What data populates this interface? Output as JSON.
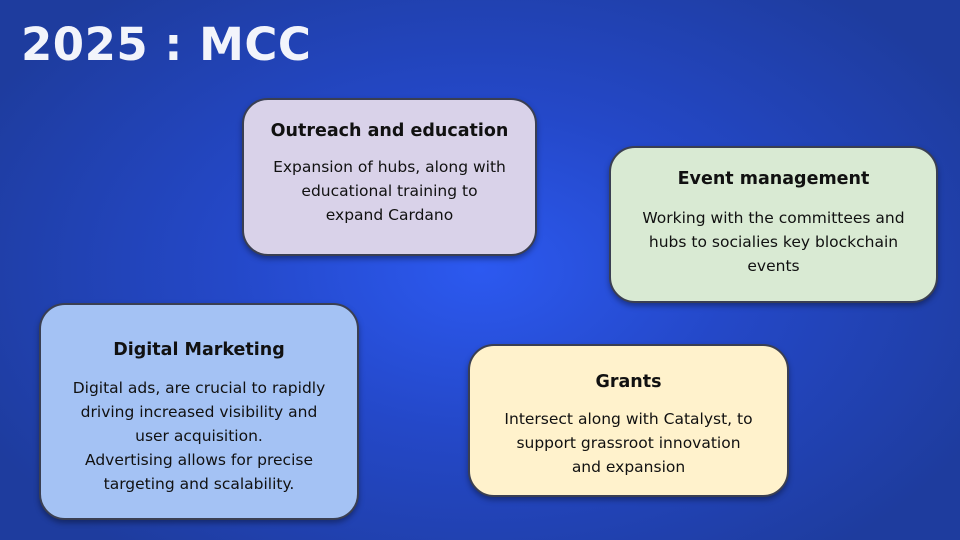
{
  "slide": {
    "title": "2025 : MCC"
  },
  "cards": {
    "outreach": {
      "heading": "Outreach and education",
      "body": "Expansion of hubs, along with\neducational training to\nexpand Cardano"
    },
    "event": {
      "heading": "Event management",
      "body": "Working with the committees and\nhubs to socialies key blockchain\nevents"
    },
    "digital": {
      "heading": "Digital Marketing",
      "body": "Digital ads, are crucial to rapidly\ndriving increased visibility and\nuser acquisition.\nAdvertising allows for precise\ntargeting and scalability."
    },
    "grants": {
      "heading": "Grants",
      "body": "Intersect along with Catalyst, to\nsupport grassroot innovation\nand expansion"
    }
  },
  "colors": {
    "background": "#2448c8",
    "outreach": "#d9d2e9",
    "event": "#d9ead3",
    "digital": "#a4c2f4",
    "grants": "#fff2cc"
  }
}
